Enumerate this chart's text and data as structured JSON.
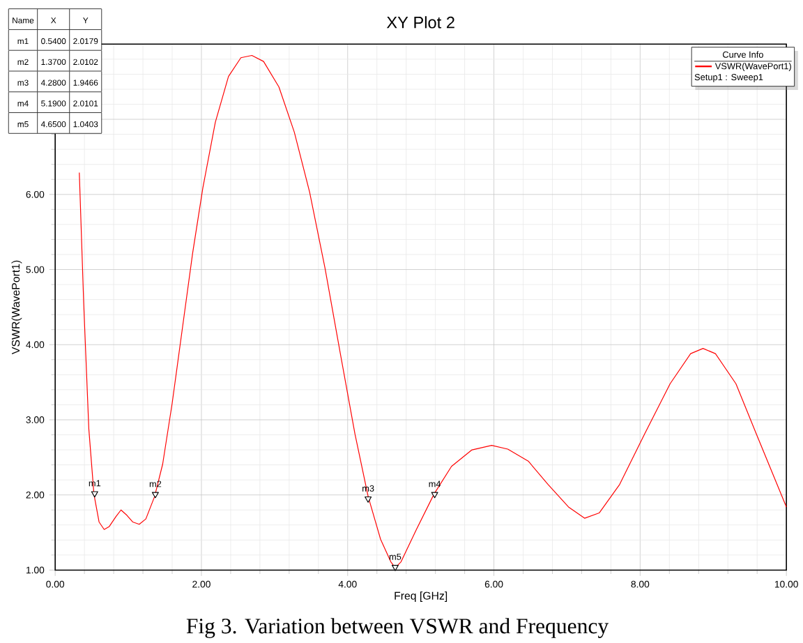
{
  "chart_data": {
    "type": "line",
    "title": "XY Plot 2",
    "xlabel": "Freq [GHz]",
    "ylabel": "VSWR(WavePort1)",
    "legend_title": "Curve Info",
    "xlim": [
      0,
      10
    ],
    "ylim": [
      1,
      8
    ],
    "xticks": [
      {
        "value": 0,
        "label": "0.00"
      },
      {
        "value": 2,
        "label": "2.00"
      },
      {
        "value": 4,
        "label": "4.00"
      },
      {
        "value": 6,
        "label": "6.00"
      },
      {
        "value": 8,
        "label": "8.00"
      },
      {
        "value": 10,
        "label": "10.00"
      }
    ],
    "yticks": [
      {
        "value": 1,
        "label": "1.00"
      },
      {
        "value": 2,
        "label": "2.00"
      },
      {
        "value": 3,
        "label": "3.00"
      },
      {
        "value": 4,
        "label": "4.00"
      },
      {
        "value": 5,
        "label": "5.00"
      },
      {
        "value": 6,
        "label": "6.00"
      },
      {
        "value": 7,
        "label": null
      },
      {
        "value": 8,
        "label": null
      }
    ],
    "grid": true,
    "legend": "top right",
    "line_style": "solid",
    "series": [
      {
        "name": "VSWR(WavePort1)",
        "color": "#ff0000",
        "marker": "none",
        "x": [
          0.33,
          0.39,
          0.46,
          0.53,
          0.6,
          0.67,
          0.74,
          0.83,
          0.9,
          0.98,
          1.06,
          1.15,
          1.24,
          1.36,
          1.47,
          1.6,
          1.74,
          1.88,
          2.02,
          2.19,
          2.37,
          2.54,
          2.69,
          2.85,
          3.06,
          3.27,
          3.48,
          3.69,
          3.9,
          4.1,
          4.28,
          4.45,
          4.59,
          4.65,
          4.73,
          4.94,
          5.18,
          5.42,
          5.7,
          5.97,
          6.19,
          6.47,
          6.74,
          7.02,
          7.24,
          7.44,
          7.72,
          8.06,
          8.41,
          8.69,
          8.86,
          9.03,
          9.31,
          9.59,
          10.0
        ],
        "values": [
          6.29,
          4.55,
          2.88,
          2.01,
          1.64,
          1.54,
          1.58,
          1.71,
          1.8,
          1.73,
          1.64,
          1.61,
          1.68,
          1.98,
          2.41,
          3.22,
          4.22,
          5.22,
          6.09,
          6.96,
          7.57,
          7.82,
          7.85,
          7.77,
          7.43,
          6.83,
          6.03,
          5.02,
          3.88,
          2.81,
          1.98,
          1.41,
          1.11,
          1.03,
          1.11,
          1.54,
          2.01,
          2.38,
          2.6,
          2.66,
          2.61,
          2.45,
          2.14,
          1.84,
          1.69,
          1.76,
          2.14,
          2.81,
          3.48,
          3.88,
          3.95,
          3.88,
          3.48,
          2.81,
          1.84
        ]
      },
      {
        "color": "#000000",
        "type": "scatter",
        "marker": "triangle",
        "x": [
          0.54,
          1.37,
          4.28,
          5.19,
          4.65
        ],
        "values": [
          2.02,
          2.01,
          1.95,
          2.01,
          1.04
        ],
        "value_labels": [
          "m1",
          "m2",
          "m3",
          "m4",
          "m5"
        ]
      }
    ],
    "annotations": [
      "Setup1 : Sweep1",
      "Fig 3. Variation between VSWR and Frequency",
      "Name",
      "X",
      "Y",
      "m1",
      "0.5400",
      "2.0179",
      "m2",
      "1.3700",
      "2.0102",
      "m3",
      "4.2800",
      "1.9466",
      "m4",
      "5.1900",
      "2.0101",
      "m5",
      "4.6500",
      "1.0403"
    ]
  }
}
